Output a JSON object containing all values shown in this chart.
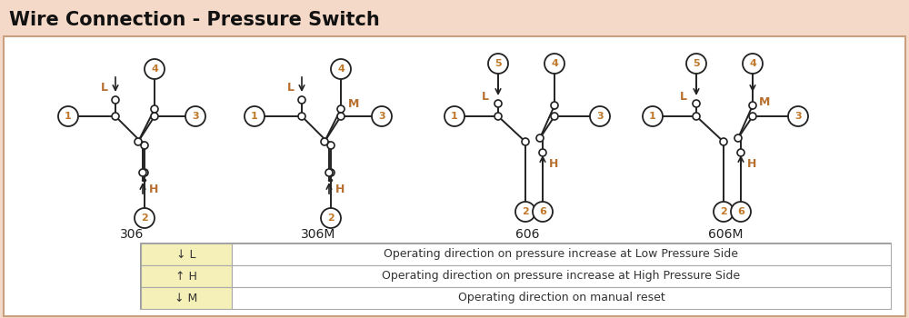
{
  "title": "Wire Connection - Pressure Switch",
  "title_bg": "#f5d9c8",
  "main_bg": "#ffffff",
  "outer_bg": "#f5d9c8",
  "border_color": "#c8a080",
  "label_color": "#b87030",
  "node_number_color": "#c07828",
  "diagrams": [
    "306",
    "306M",
    "606",
    "606M"
  ],
  "legend_rows": [
    {
      "symbol": "↓ L",
      "text": "Operating direction on pressure increase at Low Pressure Side"
    },
    {
      "symbol": "↑ H",
      "text": "Operating direction on pressure increase at High Pressure Side"
    },
    {
      "symbol": "↓ M",
      "text": "Operating direction on manual reset"
    }
  ],
  "legend_bg": "#f5efb8",
  "legend_border": "#aaaaaa"
}
